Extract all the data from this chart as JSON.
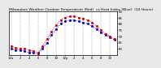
{
  "title": "Milwaukee Weather Outdoor Temperature (Red)  vs Heat Index (Blue)  (24 Hours)",
  "title_fontsize": 3.2,
  "background_color": "#e8e8e8",
  "plot_bg_color": "#ffffff",
  "red_color": "#cc0000",
  "blue_color": "#0000cc",
  "line_width": 0.7,
  "marker_size": 1.0,
  "hours": [
    0,
    1,
    2,
    3,
    4,
    5,
    6,
    7,
    8,
    9,
    10,
    11,
    12,
    13,
    14,
    15,
    16,
    17,
    18,
    19,
    20,
    21,
    22,
    23
  ],
  "temp_red": [
    62,
    61,
    60,
    60,
    59,
    58,
    57,
    62,
    68,
    74,
    79,
    83,
    85,
    86,
    86,
    85,
    84,
    83,
    81,
    78,
    75,
    72,
    70,
    68
  ],
  "heat_blue": [
    60,
    59,
    59,
    58,
    57,
    57,
    56,
    60,
    65,
    71,
    76,
    80,
    82,
    83,
    83,
    82,
    81,
    80,
    78,
    76,
    73,
    71,
    69,
    67
  ],
  "ylim": [
    55,
    90
  ],
  "ylabel_fontsize": 2.8,
  "xlabel_fontsize": 2.8,
  "yticks": [
    60,
    65,
    70,
    75,
    80,
    85,
    90
  ],
  "ytick_labels": [
    "60",
    "65",
    "70",
    "75",
    "80",
    "85",
    "90"
  ],
  "xticks": [
    0,
    2,
    4,
    6,
    8,
    10,
    12,
    14,
    16,
    18,
    20,
    22
  ],
  "xtick_labels": [
    "12a",
    "2",
    "4",
    "6",
    "8",
    "10",
    "12p",
    "2",
    "4",
    "6",
    "8",
    "10"
  ],
  "grid_color": "#888888",
  "border_color": "#000000",
  "vgrid_positions": [
    0,
    2,
    4,
    6,
    8,
    10,
    12,
    14,
    16,
    18,
    20,
    22
  ]
}
